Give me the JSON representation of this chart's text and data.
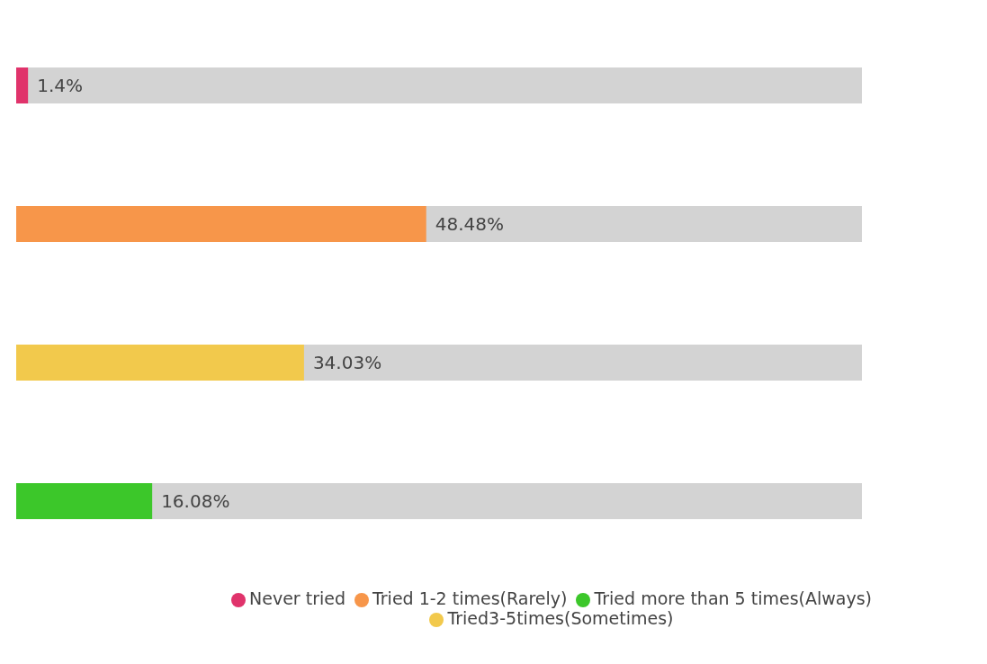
{
  "chart_data": {
    "type": "bar",
    "orientation": "horizontal",
    "stacked": true,
    "categories": [
      null,
      null,
      null,
      null
    ],
    "series": [
      {
        "name": "Never tried",
        "color": "#e0336b",
        "values": [
          1.4,
          null,
          null,
          null
        ],
        "value_labels": [
          "1.4%",
          null,
          null,
          null
        ]
      },
      {
        "name": "Tried 1-2 times(Rarely)",
        "color": "#f7964a",
        "values": [
          null,
          48.48,
          null,
          null
        ],
        "value_labels": [
          null,
          "48.48%",
          null,
          null
        ]
      },
      {
        "name": "Tried3-5times(Sometimes)",
        "color": "#f2c94c",
        "values": [
          null,
          null,
          34.03,
          null
        ],
        "value_labels": [
          null,
          null,
          "34.03%",
          null
        ]
      },
      {
        "name": "Tried more than 5 times(Always)",
        "color": "#3cc72a",
        "values": [
          null,
          null,
          null,
          16.08
        ],
        "value_labels": [
          null,
          null,
          null,
          "16.08%"
        ]
      }
    ],
    "xlim": [
      0,
      100
    ],
    "tick_labels": false,
    "grid": false,
    "legend": "bottom"
  }
}
